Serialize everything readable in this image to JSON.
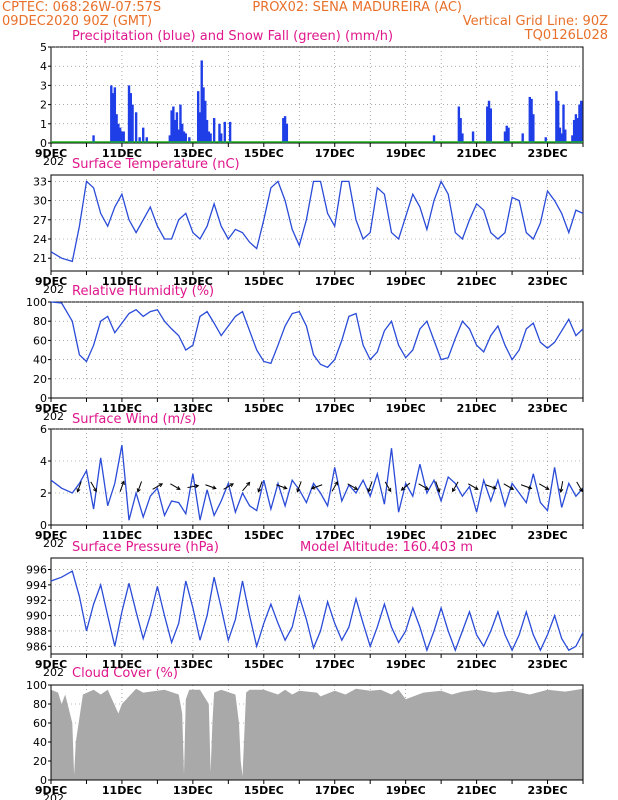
{
  "header": {
    "line1_left": "CPTEC:   068:26W-07:57S",
    "line1_right": "PROX02: SENA MADUREIRA (AC)",
    "line2_left": "09DEC2020 90Z (GMT)",
    "line2_right": "Vertical Grid Line: 90Z",
    "line3_right": "TQ0126L028"
  },
  "x_axis": {
    "start_day": 9,
    "end_day": 24,
    "tick_labels": [
      "9DEC",
      "11DEC",
      "13DEC",
      "15DEC",
      "17DEC",
      "19DEC",
      "21DEC",
      "23DEC"
    ],
    "year_stub": "202"
  },
  "colors": {
    "rain": "#1f3ee8",
    "snow": "#1fae1f",
    "line": "#2a4bd8",
    "cloud": "#a9a9a9",
    "frame": "#000000",
    "grid": "#777777"
  },
  "chart_data": [
    {
      "id": "precip",
      "type": "bar",
      "title": "Precipitation (blue) and Snow Fall (green) (mm/h)",
      "ylim": [
        0,
        5
      ],
      "yticks": [
        0,
        1,
        2,
        3,
        4,
        5
      ],
      "series": [
        {
          "name": "Precipitation",
          "x": [
            10.2,
            10.7,
            10.75,
            10.8,
            10.85,
            10.9,
            10.95,
            11.0,
            11.05,
            11.2,
            11.25,
            11.3,
            11.4,
            11.5,
            11.6,
            11.7,
            12.35,
            12.4,
            12.45,
            12.5,
            12.55,
            12.6,
            12.65,
            12.7,
            12.75,
            12.8,
            12.9,
            13.15,
            13.2,
            13.25,
            13.3,
            13.35,
            13.4,
            13.45,
            13.5,
            13.6,
            13.75,
            13.8,
            13.9,
            14.05,
            15.55,
            15.6,
            15.65,
            19.8,
            20.5,
            20.55,
            20.6,
            20.9,
            21.3,
            21.35,
            21.4,
            21.8,
            21.85,
            21.9,
            22.3,
            22.5,
            22.55,
            22.6,
            22.95,
            23.25,
            23.3,
            23.35,
            23.4,
            23.45,
            23.5,
            23.7,
            23.75,
            23.8,
            23.85,
            23.9,
            23.95
          ],
          "values": [
            0.4,
            3.0,
            2.6,
            2.9,
            1.5,
            1.0,
            0.8,
            0.6,
            0.6,
            3.0,
            2.6,
            2.0,
            1.6,
            0.3,
            0.8,
            0.3,
            0.4,
            1.7,
            1.9,
            1.2,
            1.6,
            0.7,
            2.0,
            1.0,
            0.6,
            0.5,
            0.3,
            2.7,
            1.6,
            4.3,
            2.9,
            2.2,
            1.2,
            0.6,
            0.5,
            1.3,
            1.0,
            0.5,
            1.1,
            1.1,
            1.3,
            1.4,
            1.0,
            0.4,
            1.9,
            1.3,
            0.5,
            0.6,
            1.9,
            2.2,
            1.8,
            0.6,
            0.9,
            0.8,
            0.5,
            2.4,
            2.3,
            1.5,
            0.3,
            2.7,
            2.2,
            0.8,
            0.5,
            2.0,
            0.7,
            0.4,
            1.2,
            1.5,
            1.3,
            2.0,
            2.2
          ]
        },
        {
          "name": "Snow Fall",
          "x": [
            9.0,
            24.0
          ],
          "values": [
            0,
            0
          ]
        }
      ]
    },
    {
      "id": "temperature",
      "type": "line",
      "title": "Surface Temperature (nC)",
      "ylim": [
        19,
        34
      ],
      "yticks": [
        21,
        24,
        27,
        30,
        33
      ],
      "x": [
        9.0,
        9.3,
        9.6,
        9.8,
        10.0,
        10.2,
        10.4,
        10.6,
        10.8,
        11.0,
        11.2,
        11.4,
        11.6,
        11.8,
        12.0,
        12.2,
        12.4,
        12.6,
        12.8,
        13.0,
        13.2,
        13.4,
        13.6,
        13.8,
        14.0,
        14.2,
        14.4,
        14.6,
        14.8,
        15.0,
        15.2,
        15.4,
        15.6,
        15.8,
        16.0,
        16.2,
        16.4,
        16.6,
        16.8,
        17.0,
        17.2,
        17.4,
        17.6,
        17.8,
        18.0,
        18.2,
        18.4,
        18.6,
        18.8,
        19.0,
        19.2,
        19.4,
        19.6,
        19.8,
        20.0,
        20.2,
        20.4,
        20.6,
        20.8,
        21.0,
        21.2,
        21.4,
        21.6,
        21.8,
        22.0,
        22.2,
        22.4,
        22.6,
        22.8,
        23.0,
        23.2,
        23.4,
        23.6,
        23.8,
        24.0
      ],
      "values": [
        22,
        21,
        20.5,
        26,
        33,
        32,
        28,
        26,
        29,
        31,
        27,
        25,
        27,
        29,
        26,
        24,
        24,
        27,
        28,
        25,
        24,
        26,
        29.5,
        26,
        24,
        25.5,
        25,
        23.5,
        22.5,
        27,
        32,
        33,
        30,
        25.5,
        23,
        27,
        33,
        33,
        28,
        26,
        33,
        33,
        27,
        24,
        25,
        32,
        31,
        25,
        24,
        27.5,
        31,
        29,
        25.5,
        30,
        33,
        31,
        25,
        24,
        27,
        29.5,
        28.5,
        25,
        24,
        25,
        30.5,
        30,
        25,
        24,
        26.5,
        31.5,
        30,
        28,
        25,
        28.5,
        28
      ]
    },
    {
      "id": "humidity",
      "type": "line",
      "title": "Relative Humidity (%)",
      "ylim": [
        0,
        100
      ],
      "yticks": [
        0,
        20,
        40,
        60,
        80,
        100
      ],
      "x": [
        9.0,
        9.3,
        9.6,
        9.8,
        10.0,
        10.2,
        10.4,
        10.6,
        10.8,
        11.0,
        11.2,
        11.4,
        11.6,
        11.8,
        12.0,
        12.2,
        12.4,
        12.6,
        12.8,
        13.0,
        13.2,
        13.4,
        13.6,
        13.8,
        14.0,
        14.2,
        14.4,
        14.6,
        14.8,
        15.0,
        15.2,
        15.4,
        15.6,
        15.8,
        16.0,
        16.2,
        16.4,
        16.6,
        16.8,
        17.0,
        17.2,
        17.4,
        17.6,
        17.8,
        18.0,
        18.2,
        18.4,
        18.6,
        18.8,
        19.0,
        19.2,
        19.4,
        19.6,
        19.8,
        20.0,
        20.2,
        20.4,
        20.6,
        20.8,
        21.0,
        21.2,
        21.4,
        21.6,
        21.8,
        22.0,
        22.2,
        22.4,
        22.6,
        22.8,
        23.0,
        23.2,
        23.4,
        23.6,
        23.8,
        24.0
      ],
      "values": [
        100,
        99,
        80,
        45,
        38,
        55,
        80,
        85,
        68,
        78,
        88,
        92,
        85,
        90,
        92,
        80,
        72,
        65,
        50,
        55,
        85,
        90,
        78,
        65,
        75,
        85,
        90,
        70,
        50,
        38,
        36,
        55,
        75,
        88,
        90,
        75,
        45,
        35,
        32,
        40,
        60,
        85,
        88,
        55,
        40,
        48,
        70,
        80,
        55,
        42,
        50,
        72,
        80,
        60,
        40,
        42,
        62,
        80,
        72,
        55,
        48,
        65,
        75,
        55,
        40,
        50,
        72,
        78,
        58,
        52,
        58,
        70,
        82,
        65,
        72
      ]
    },
    {
      "id": "wind",
      "type": "line",
      "title": "Surface Wind (m/s)",
      "ylim": [
        0,
        6
      ],
      "yticks": [
        0,
        2,
        4,
        6
      ],
      "x": [
        9.0,
        9.3,
        9.6,
        9.8,
        10.0,
        10.2,
        10.4,
        10.6,
        10.8,
        11.0,
        11.2,
        11.4,
        11.6,
        11.8,
        12.0,
        12.2,
        12.4,
        12.6,
        12.8,
        13.0,
        13.2,
        13.4,
        13.6,
        13.8,
        14.0,
        14.2,
        14.4,
        14.6,
        14.8,
        15.0,
        15.2,
        15.4,
        15.6,
        15.8,
        16.0,
        16.2,
        16.4,
        16.6,
        16.8,
        17.0,
        17.2,
        17.4,
        17.6,
        17.8,
        18.0,
        18.2,
        18.4,
        18.6,
        18.8,
        19.0,
        19.2,
        19.4,
        19.6,
        19.8,
        20.0,
        20.2,
        20.4,
        20.6,
        20.8,
        21.0,
        21.2,
        21.4,
        21.6,
        21.8,
        22.0,
        22.2,
        22.4,
        22.6,
        22.8,
        23.0,
        23.2,
        23.4,
        23.6,
        23.8,
        24.0
      ],
      "values": [
        2.8,
        2.3,
        2.0,
        2.6,
        3.4,
        1.0,
        4.2,
        1.2,
        2.6,
        5.0,
        0.3,
        2.0,
        0.5,
        1.8,
        2.3,
        0.6,
        1.5,
        1.4,
        0.7,
        3.2,
        0.3,
        2.2,
        0.6,
        1.5,
        2.6,
        0.8,
        2.0,
        1.2,
        0.9,
        2.8,
        1.0,
        2.6,
        1.2,
        2.8,
        2.2,
        1.4,
        2.6,
        2.0,
        1.2,
        3.6,
        1.5,
        2.5,
        2.0,
        2.8,
        1.8,
        3.2,
        1.3,
        4.8,
        0.8,
        2.6,
        1.8,
        3.8,
        2.0,
        2.8,
        1.5,
        3.0,
        2.6,
        1.8,
        2.4,
        0.8,
        2.8,
        1.5,
        2.8,
        1.2,
        2.6,
        2.0,
        1.4,
        3.2,
        1.4,
        0.9,
        3.6,
        1.1,
        2.6,
        1.8,
        2.3
      ],
      "barbs": [
        {
          "x": 9.8,
          "dir_deg": 200
        },
        {
          "x": 10.2,
          "dir_deg": 150
        },
        {
          "x": 11.0,
          "dir_deg": 20
        },
        {
          "x": 11.5,
          "dir_deg": 200
        },
        {
          "x": 12.0,
          "dir_deg": 60
        },
        {
          "x": 12.5,
          "dir_deg": 120
        },
        {
          "x": 13.0,
          "dir_deg": 80
        },
        {
          "x": 13.5,
          "dir_deg": 110
        },
        {
          "x": 14.0,
          "dir_deg": 60
        },
        {
          "x": 14.5,
          "dir_deg": 40
        },
        {
          "x": 14.9,
          "dir_deg": 200
        },
        {
          "x": 15.5,
          "dir_deg": 110
        },
        {
          "x": 16.0,
          "dir_deg": 200
        },
        {
          "x": 16.5,
          "dir_deg": 250
        },
        {
          "x": 17.0,
          "dir_deg": 30
        },
        {
          "x": 17.5,
          "dir_deg": 120
        },
        {
          "x": 18.0,
          "dir_deg": 200
        },
        {
          "x": 18.5,
          "dir_deg": 150
        },
        {
          "x": 19.0,
          "dir_deg": 230
        },
        {
          "x": 19.5,
          "dir_deg": 120
        },
        {
          "x": 19.9,
          "dir_deg": 160
        },
        {
          "x": 20.4,
          "dir_deg": 210
        },
        {
          "x": 20.9,
          "dir_deg": 120
        },
        {
          "x": 21.4,
          "dir_deg": 110
        },
        {
          "x": 21.9,
          "dir_deg": 120
        },
        {
          "x": 22.4,
          "dir_deg": 110
        },
        {
          "x": 22.9,
          "dir_deg": 120
        },
        {
          "x": 23.4,
          "dir_deg": 190
        },
        {
          "x": 23.9,
          "dir_deg": 150
        }
      ]
    },
    {
      "id": "pressure",
      "type": "line",
      "title": "Surface Pressure (hPa)",
      "annotation": "Model Altitude: 160.403 m",
      "ylim": [
        985,
        997.5
      ],
      "yticks": [
        986,
        988,
        990,
        992,
        994,
        996
      ],
      "x": [
        9.0,
        9.3,
        9.6,
        9.8,
        10.0,
        10.2,
        10.4,
        10.6,
        10.8,
        11.0,
        11.2,
        11.4,
        11.6,
        11.8,
        12.0,
        12.2,
        12.4,
        12.6,
        12.8,
        13.0,
        13.2,
        13.4,
        13.6,
        13.8,
        14.0,
        14.2,
        14.4,
        14.6,
        14.8,
        15.0,
        15.2,
        15.4,
        15.6,
        15.8,
        16.0,
        16.2,
        16.4,
        16.6,
        16.8,
        17.0,
        17.2,
        17.4,
        17.6,
        17.8,
        18.0,
        18.2,
        18.4,
        18.6,
        18.8,
        19.0,
        19.2,
        19.4,
        19.6,
        19.8,
        20.0,
        20.2,
        20.4,
        20.6,
        20.8,
        21.0,
        21.2,
        21.4,
        21.6,
        21.8,
        22.0,
        22.2,
        22.4,
        22.6,
        22.8,
        23.0,
        23.2,
        23.4,
        23.6,
        23.8,
        24.0
      ],
      "values": [
        994.5,
        995.0,
        995.8,
        992.5,
        988.0,
        991.5,
        994.0,
        990.0,
        986.0,
        990.5,
        994.2,
        990.5,
        987.0,
        990.0,
        993.8,
        990.0,
        986.5,
        989.0,
        994.5,
        991.0,
        986.8,
        990.0,
        995.0,
        991.0,
        986.8,
        989.5,
        994.5,
        990.0,
        986.0,
        989.0,
        991.5,
        989.0,
        986.8,
        988.5,
        992.5,
        989.5,
        985.8,
        988.0,
        991.8,
        989.0,
        986.8,
        988.5,
        992.2,
        989.0,
        986.0,
        988.5,
        991.5,
        988.5,
        986.5,
        988.0,
        991.0,
        988.5,
        985.5,
        988.0,
        991.0,
        988.0,
        985.5,
        988.0,
        990.5,
        987.5,
        986.0,
        988.0,
        990.5,
        987.5,
        985.5,
        987.5,
        990.5,
        987.5,
        985.5,
        987.5,
        990.0,
        987.0,
        985.5,
        986.0,
        987.8
      ]
    },
    {
      "id": "cloud",
      "type": "area",
      "title": "Cloud Cover (%)",
      "ylim": [
        0,
        100
      ],
      "yticks": [
        0,
        20,
        40,
        60,
        80,
        100
      ],
      "x": [
        9.0,
        9.2,
        9.3,
        9.4,
        9.6,
        9.65,
        9.7,
        9.9,
        10.2,
        10.4,
        10.6,
        10.9,
        11.0,
        11.4,
        11.6,
        12.2,
        12.6,
        12.7,
        12.75,
        12.8,
        12.9,
        13.2,
        13.45,
        13.5,
        13.55,
        13.6,
        13.8,
        14.2,
        14.3,
        14.35,
        14.4,
        14.5,
        14.6,
        15.0,
        15.4,
        15.6,
        15.8,
        16.0,
        16.5,
        16.6,
        17.0,
        17.3,
        17.6,
        18.0,
        18.3,
        18.6,
        18.8,
        19.0,
        19.5,
        20.0,
        20.3,
        20.6,
        21.0,
        21.5,
        22.0,
        22.5,
        23.0,
        23.5,
        24.0
      ],
      "values": [
        95,
        92,
        80,
        90,
        60,
        5,
        40,
        90,
        95,
        90,
        95,
        70,
        80,
        96,
        92,
        95,
        90,
        70,
        6,
        85,
        95,
        95,
        80,
        8,
        60,
        92,
        95,
        90,
        60,
        20,
        4,
        92,
        95,
        95,
        90,
        95,
        90,
        94,
        92,
        88,
        94,
        90,
        96,
        94,
        95,
        90,
        95,
        85,
        92,
        94,
        90,
        93,
        95,
        92,
        94,
        90,
        95,
        93,
        96
      ]
    }
  ]
}
